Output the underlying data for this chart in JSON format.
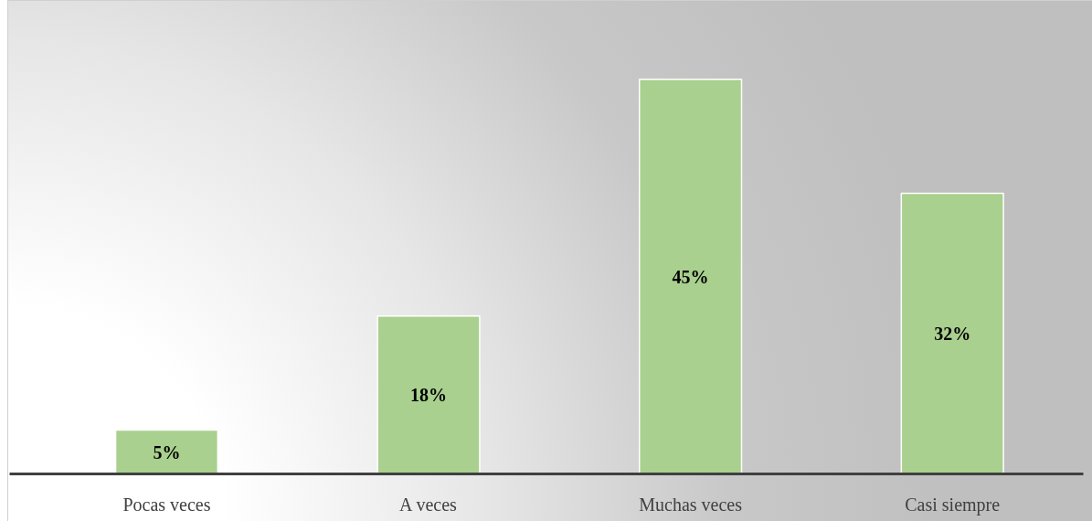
{
  "chart_data": {
    "type": "bar",
    "categories": [
      "Pocas veces",
      "A veces",
      "Muchas veces",
      "Casi siempre"
    ],
    "values": [
      5,
      18,
      45,
      32
    ],
    "value_labels": [
      "5%",
      "18%",
      "45%",
      "32%"
    ],
    "color": "#a9d08e"
  }
}
